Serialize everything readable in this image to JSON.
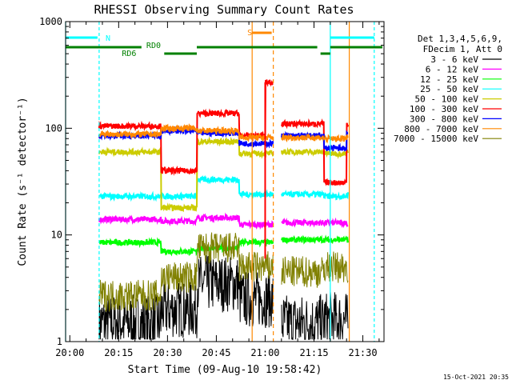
{
  "chart_data": {
    "type": "line",
    "title": "RHESSI Observing Summary Count Rates",
    "xlabel": "Start Time (09-Aug-10 19:58:42)",
    "ylabel": "Count Rate (s⁻¹ detector⁻¹)",
    "xlim": [
      "19:58:42",
      "21:36:30"
    ],
    "ylim": [
      1,
      1000
    ],
    "yscale": "log",
    "x_ticks": [
      "20:00",
      "20:15",
      "20:30",
      "20:45",
      "21:00",
      "21:15",
      "21:30"
    ],
    "y_ticks": [
      "1",
      "10",
      "100",
      "1000"
    ],
    "legend_header": [
      "Det 1,3,4,5,6,9,",
      "FDecim 1, Att 0"
    ],
    "legend_position": "right",
    "footer_date": "15-Oct-2021 20:35",
    "data_gaps": [
      [
        "19:58:42",
        "20:08:30"
      ],
      [
        "21:02:30",
        "21:05:00"
      ],
      [
        "21:25:50",
        "21:36:30"
      ]
    ],
    "series": [
      {
        "name": "3 - 6 keV",
        "color": "#000000",
        "x": [
          "20:09",
          "20:28",
          "20:39",
          "20:52",
          "21:05",
          "21:18",
          "21:25"
        ],
        "y": [
          1.5,
          2.0,
          3.5,
          2.5,
          1.5,
          1.6,
          1.5
        ]
      },
      {
        "name": "6 - 12 keV",
        "color": "#ff00ff",
        "x": [
          "20:09",
          "20:28",
          "20:39",
          "20:52",
          "21:05",
          "21:18",
          "21:25"
        ],
        "y": [
          14,
          13.5,
          14.5,
          12.5,
          13,
          13,
          12.5
        ]
      },
      {
        "name": "12 - 25 keV",
        "color": "#00ff00",
        "x": [
          "20:09",
          "20:28",
          "20:39",
          "20:52",
          "21:05",
          "21:18",
          "21:25"
        ],
        "y": [
          8.5,
          7,
          7.5,
          8.5,
          9,
          9,
          9
        ]
      },
      {
        "name": "25 - 50 keV",
        "color": "#00ffff",
        "x": [
          "20:09",
          "20:28",
          "20:39",
          "20:52",
          "21:05",
          "21:18",
          "21:25"
        ],
        "y": [
          23,
          23,
          33,
          24,
          24,
          23,
          24
        ]
      },
      {
        "name": "50 - 100 keV",
        "color": "#cccc00",
        "x": [
          "20:09",
          "20:28",
          "20:39",
          "20:52",
          "21:05",
          "21:18",
          "21:25"
        ],
        "y": [
          60,
          18,
          75,
          58,
          60,
          58,
          62
        ]
      },
      {
        "name": "100 - 300 keV",
        "color": "#ff0000",
        "x": [
          "20:09",
          "20:28",
          "20:39",
          "20:52",
          "21:00",
          "21:05",
          "21:18",
          "21:25"
        ],
        "y": [
          105,
          40,
          138,
          85,
          270,
          110,
          31,
          110
        ]
      },
      {
        "name": "300 - 800 keV",
        "color": "#0000ff",
        "x": [
          "20:09",
          "20:28",
          "20:39",
          "20:52",
          "21:05",
          "21:18",
          "21:25"
        ],
        "y": [
          85,
          95,
          90,
          72,
          85,
          65,
          90
        ]
      },
      {
        "name": "800 - 7000 keV",
        "color": "#ff8800",
        "x": [
          "20:09",
          "20:28",
          "20:39",
          "20:52",
          "21:05",
          "21:18",
          "21:25"
        ],
        "y": [
          88,
          100,
          95,
          82,
          82,
          80,
          82
        ]
      },
      {
        "name": "7000 - 15000 keV",
        "color": "#808000",
        "x": [
          "20:09",
          "20:28",
          "20:39",
          "20:52",
          "21:05",
          "21:18",
          "21:25"
        ],
        "y": [
          2.7,
          4,
          7.5,
          5,
          4.5,
          5,
          5
        ]
      }
    ],
    "annotations": {
      "N": "N",
      "S": "S",
      "RD0": "RD0",
      "RD6": "RD6"
    }
  }
}
